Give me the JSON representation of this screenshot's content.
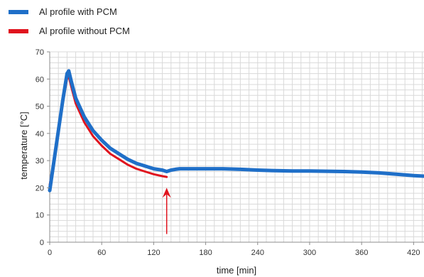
{
  "chart_data": {
    "type": "line",
    "title": "",
    "xlabel": "time [min]",
    "ylabel": "temperature [°C]",
    "xlim": [
      0,
      432
    ],
    "ylim": [
      0,
      70
    ],
    "x_ticks": [
      0,
      60,
      120,
      180,
      240,
      300,
      360,
      420
    ],
    "y_ticks": [
      0,
      10,
      20,
      30,
      40,
      50,
      60,
      70
    ],
    "grid": true,
    "legend_position": "top-left",
    "series": [
      {
        "name": "Al profile with PCM",
        "color": "#1f6fc8",
        "x": [
          0,
          5,
          10,
          15,
          20,
          22,
          25,
          30,
          40,
          50,
          60,
          70,
          80,
          90,
          100,
          110,
          120,
          130,
          135,
          140,
          145,
          150,
          160,
          180,
          200,
          220,
          240,
          260,
          280,
          300,
          320,
          340,
          360,
          380,
          400,
          420,
          432
        ],
        "y": [
          19,
          30,
          41,
          52,
          62,
          63,
          59,
          53,
          46,
          41,
          37.5,
          34.5,
          32.5,
          30.5,
          29,
          28,
          27,
          26.5,
          26,
          26.5,
          26.8,
          27,
          27,
          27,
          27,
          26.8,
          26.5,
          26.3,
          26.2,
          26.2,
          26.1,
          26,
          25.8,
          25.5,
          25,
          24.5,
          24.3
        ]
      },
      {
        "name": "Al profile without PCM",
        "color": "#e0141e",
        "x": [
          0,
          5,
          10,
          15,
          20,
          22,
          25,
          30,
          40,
          50,
          60,
          70,
          80,
          90,
          100,
          110,
          120,
          130,
          135
        ],
        "y": [
          21,
          31,
          41,
          51,
          60,
          61,
          57,
          51,
          44,
          39,
          35.5,
          32.5,
          30.5,
          28.5,
          27,
          26,
          25,
          24.3,
          24
        ]
      }
    ],
    "annotations": [
      {
        "type": "arrow",
        "color": "#e0141e",
        "x": 135,
        "y_from": 3,
        "y_to": 20
      }
    ]
  }
}
